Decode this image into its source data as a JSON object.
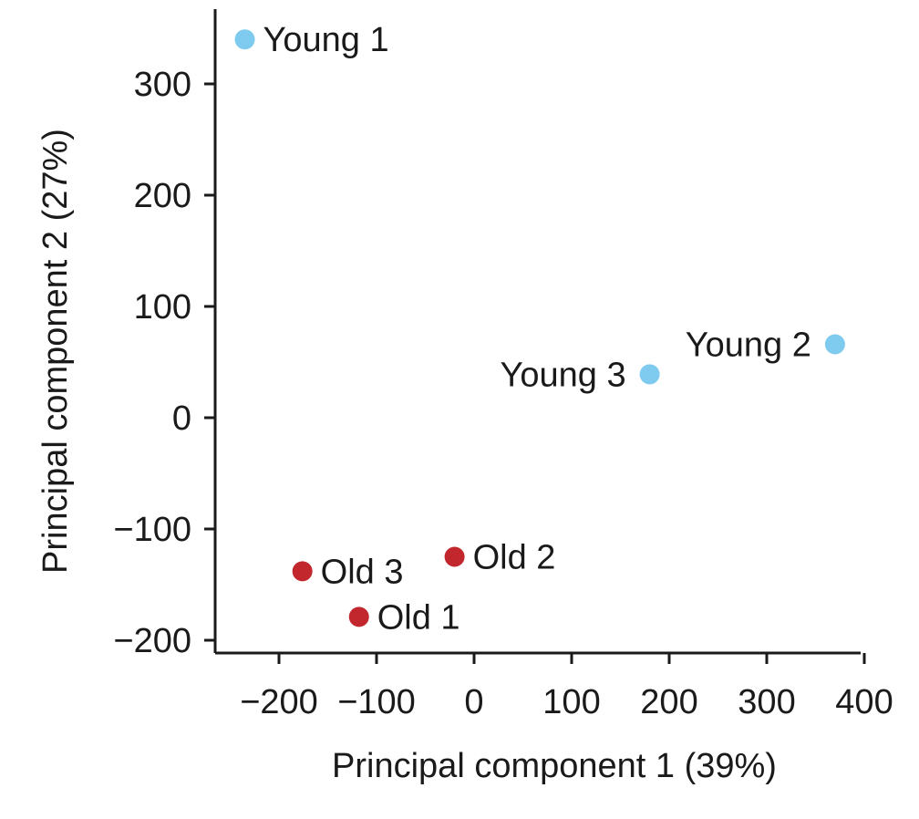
{
  "chart_data": {
    "type": "scatter",
    "xlabel": "Principal component 1 (39%)",
    "ylabel": "Principal component 2 (27%)",
    "xlim": [
      -270,
      400
    ],
    "ylim": [
      -210,
      370
    ],
    "xticks": [
      -200,
      -100,
      0,
      100,
      200,
      300,
      400
    ],
    "xtick_labels": [
      "−200",
      "−100",
      "0",
      "100",
      "200",
      "300",
      "400"
    ],
    "yticks": [
      -200,
      -100,
      0,
      100,
      200,
      300
    ],
    "ytick_labels": [
      "−200",
      "−100",
      "0",
      "100",
      "200",
      "300"
    ],
    "grid": false,
    "points": [
      {
        "label": "Young 1",
        "x": -235,
        "y": 340,
        "color": "#7ecbef",
        "label_side": "right"
      },
      {
        "label": "Young 2",
        "x": 370,
        "y": 66,
        "color": "#7ecbef",
        "label_side": "left"
      },
      {
        "label": "Young 3",
        "x": 180,
        "y": 39,
        "color": "#7ecbef",
        "label_side": "left"
      },
      {
        "label": "Old 1",
        "x": -118,
        "y": -179,
        "color": "#c1272d",
        "label_side": "right"
      },
      {
        "label": "Old 2",
        "x": -20,
        "y": -125,
        "color": "#c1272d",
        "label_side": "right"
      },
      {
        "label": "Old 3",
        "x": -176,
        "y": -138,
        "color": "#c1272d",
        "label_side": "right"
      }
    ]
  }
}
